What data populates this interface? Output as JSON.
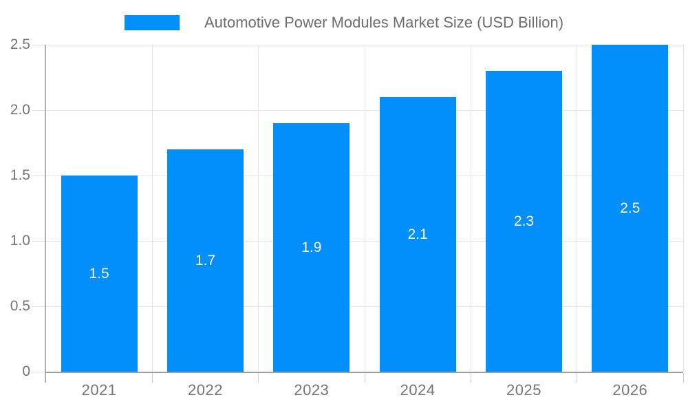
{
  "legend": {
    "label": "Automotive Power Modules Market Size (USD Billion)",
    "swatch_color": "#008FFB"
  },
  "chart_data": {
    "type": "bar",
    "title": "Automotive Power Modules Market Size (USD Billion)",
    "categories": [
      "2021",
      "2022",
      "2023",
      "2024",
      "2025",
      "2026"
    ],
    "values": [
      1.5,
      1.7,
      1.9,
      2.1,
      2.3,
      2.5
    ],
    "bar_labels": [
      "1.5",
      "1.7",
      "1.9",
      "2.1",
      "2.3",
      "2.5"
    ],
    "xlabel": "",
    "ylabel": "",
    "ylim": [
      0,
      2.5
    ],
    "ytick_labels": [
      "0",
      "0.5",
      "1.0",
      "1.5",
      "2.0",
      "2.5"
    ],
    "grid": true,
    "legend_position": "top",
    "bar_color": "#008FFB",
    "value_label_color": "#ffffff"
  },
  "colors": {
    "bar": "#008FFB",
    "title_text": "#6e6e6e",
    "axis_label": "#757575",
    "gridline": "#e6e6e6",
    "baseline": "#9e9e9e",
    "axis_line": "#b0b0b0",
    "background": "#ffffff"
  }
}
